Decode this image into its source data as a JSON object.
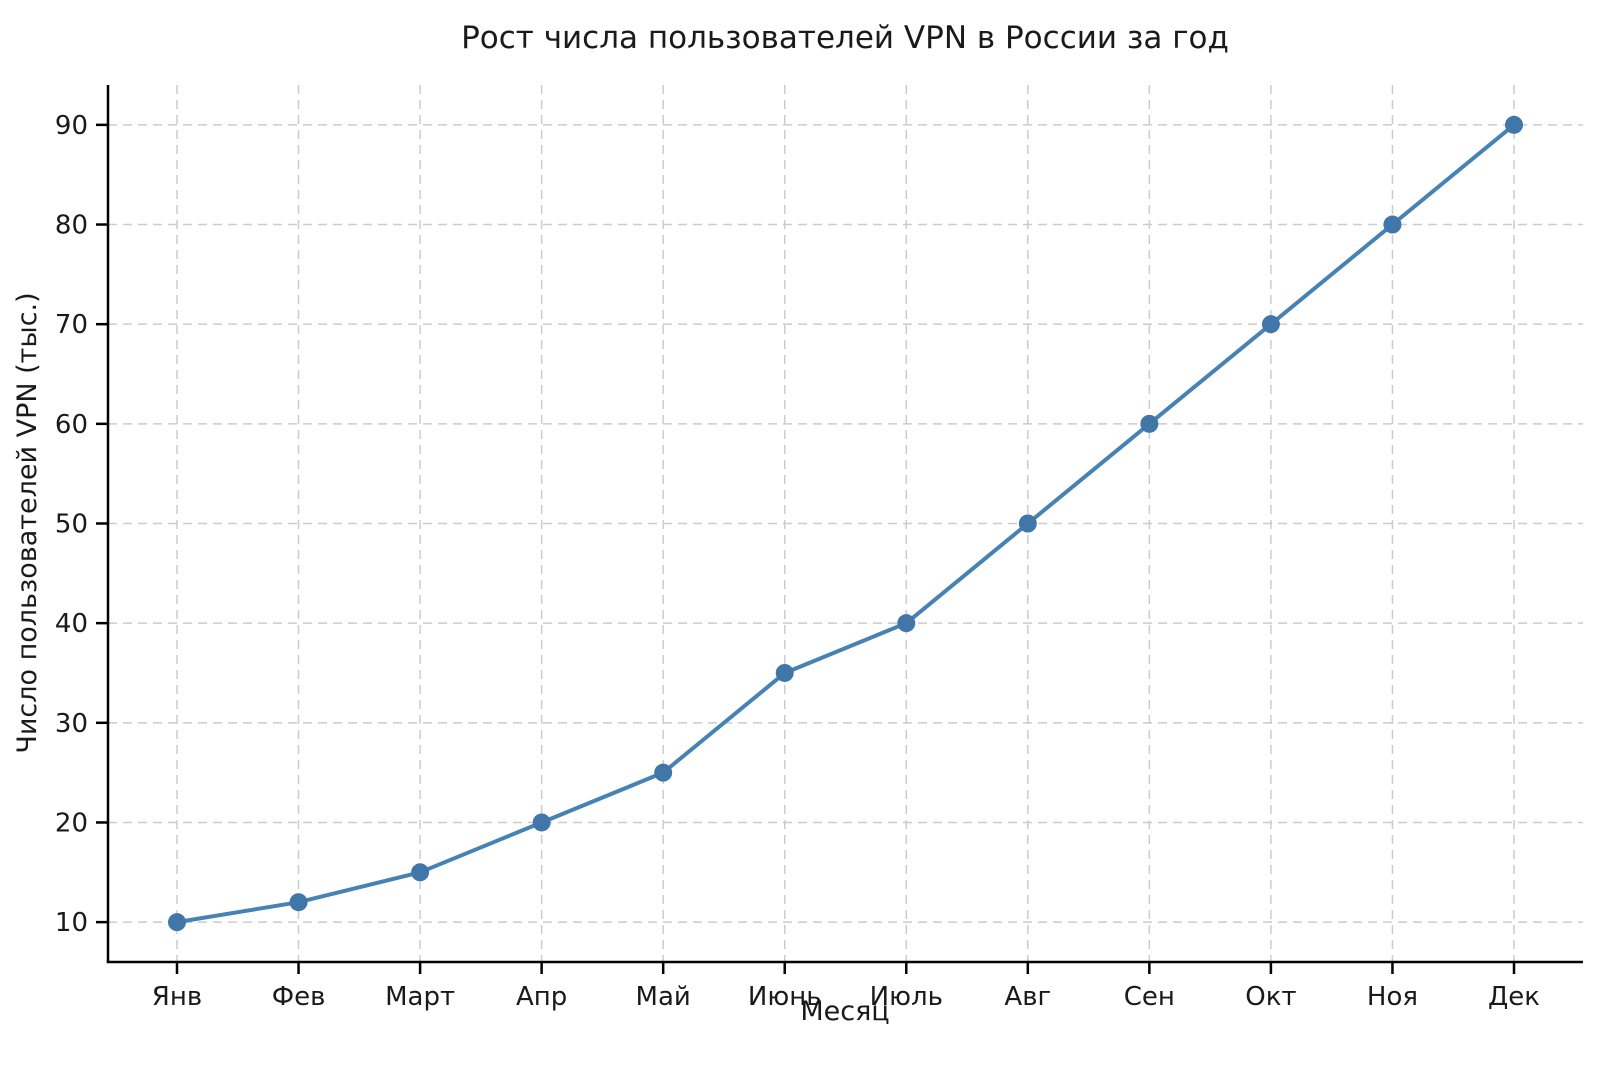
{
  "chart_data": {
    "type": "line",
    "title": "Рост числа пользователей VPN в России за год",
    "xlabel": "Месяц",
    "ylabel": "Число пользователей VPN (тыс.)",
    "categories": [
      "Янв",
      "Фев",
      "Март",
      "Апр",
      "Май",
      "Июнь",
      "Июль",
      "Авг",
      "Сен",
      "Окт",
      "Ноя",
      "Дек"
    ],
    "values": [
      10,
      12,
      15,
      20,
      25,
      35,
      40,
      50,
      60,
      70,
      80,
      90
    ],
    "yticks": [
      10,
      20,
      30,
      40,
      50,
      60,
      70,
      80,
      90
    ],
    "ylim": [
      6,
      94
    ],
    "grid": "on",
    "grid_style": "dashed",
    "legend_position": "none",
    "colors": {
      "line": "#4682b4",
      "marker": "#4176a8",
      "grid": "#cccccc",
      "spine": "#000000",
      "text": "#1a1a1a",
      "background": "#ffffff"
    }
  }
}
